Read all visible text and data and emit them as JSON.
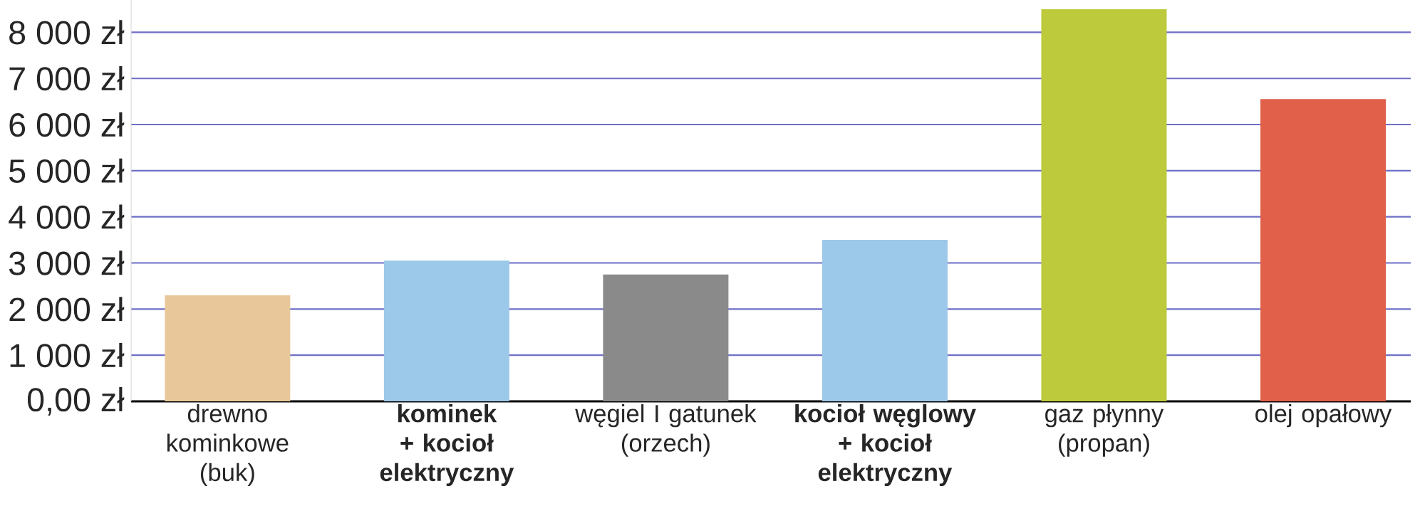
{
  "chart_data": {
    "type": "bar",
    "categories": [
      "drewno kominkowe (buk)",
      "**kominek + kocioł elektryczny**",
      "węgiel I gatunek (orzech)",
      "**kocioł węglowy + kocioł elektryczny**",
      "gaz płynny (propan)",
      "olej opałowy"
    ],
    "values": [
      2300,
      3050,
      2750,
      3500,
      8500,
      6550
    ],
    "colors": [
      "#e8c89a",
      "#9cc8ea",
      "#8a8a8a",
      "#9cc8ea",
      "#bcca3c",
      "#e0604a"
    ],
    "ylim": [
      0,
      8700
    ],
    "yticks": [
      {
        "value": 0,
        "label": "0,00 zł"
      },
      {
        "value": 1000,
        "label": "1 000 zł"
      },
      {
        "value": 2000,
        "label": "2 000 zł"
      },
      {
        "value": 3000,
        "label": "3 000 zł"
      },
      {
        "value": 4000,
        "label": "4 000 zł"
      },
      {
        "value": 5000,
        "label": "5 000 zł"
      },
      {
        "value": 6000,
        "label": "6 000 zł"
      },
      {
        "value": 7000,
        "label": "7 000 zł"
      },
      {
        "value": 8000,
        "label": "8 000 zł"
      }
    ],
    "grid": "y"
  }
}
